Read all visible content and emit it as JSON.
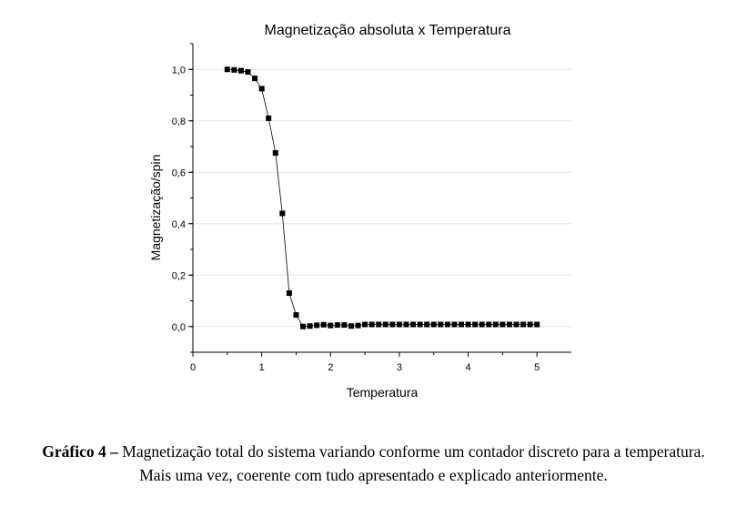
{
  "chart_data": {
    "type": "scatter",
    "title": "Magnetização absoluta x Temperatura",
    "xlabel": "Temperatura",
    "ylabel": "Magnetização/spin",
    "xlim": [
      0,
      5.5
    ],
    "ylim": [
      -0.1,
      1.1
    ],
    "xticks": [
      0,
      1,
      2,
      3,
      4,
      5
    ],
    "xtick_labels": [
      "0",
      "1",
      "2",
      "3",
      "4",
      "5"
    ],
    "yticks": [
      0.0,
      0.2,
      0.4,
      0.6,
      0.8,
      1.0
    ],
    "ytick_labels": [
      "0,0",
      "0,2",
      "0,4",
      "0,6",
      "0,8",
      "1,0"
    ],
    "grid": "horizontal",
    "marker": "square",
    "connected": true,
    "series": [
      {
        "x": [
          0.5,
          0.6,
          0.7,
          0.8,
          0.9,
          1.0,
          1.1,
          1.2,
          1.3,
          1.4,
          1.5,
          1.6,
          1.7,
          1.8,
          1.9,
          2.0,
          2.1,
          2.2,
          2.3,
          2.4,
          2.5,
          2.6,
          2.7,
          2.8,
          2.9,
          3.0,
          3.1,
          3.2,
          3.3,
          3.4,
          3.5,
          3.6,
          3.7,
          3.8,
          3.9,
          4.0,
          4.1,
          4.2,
          4.3,
          4.4,
          4.5,
          4.6,
          4.7,
          4.8,
          4.9,
          5.0
        ],
        "y": [
          1.0,
          0.998,
          0.995,
          0.99,
          0.965,
          0.925,
          0.81,
          0.675,
          0.44,
          0.13,
          0.045,
          0.0,
          0.002,
          0.005,
          0.007,
          0.004,
          0.006,
          0.006,
          0.002,
          0.004,
          0.008,
          0.008,
          0.008,
          0.008,
          0.008,
          0.008,
          0.008,
          0.008,
          0.008,
          0.008,
          0.008,
          0.008,
          0.008,
          0.008,
          0.008,
          0.008,
          0.008,
          0.008,
          0.008,
          0.008,
          0.008,
          0.008,
          0.008,
          0.008,
          0.008,
          0.008
        ]
      }
    ],
    "colors": {
      "marker": "#000000",
      "line": "#000000",
      "grid": "#e6e6e6"
    }
  },
  "caption": {
    "label": "Gráfico 4 –",
    "text": "Magnetização total do sistema variando conforme um contador discreto para a temperatura. Mais uma vez, coerente com tudo apresentado e explicado anteriormente."
  }
}
